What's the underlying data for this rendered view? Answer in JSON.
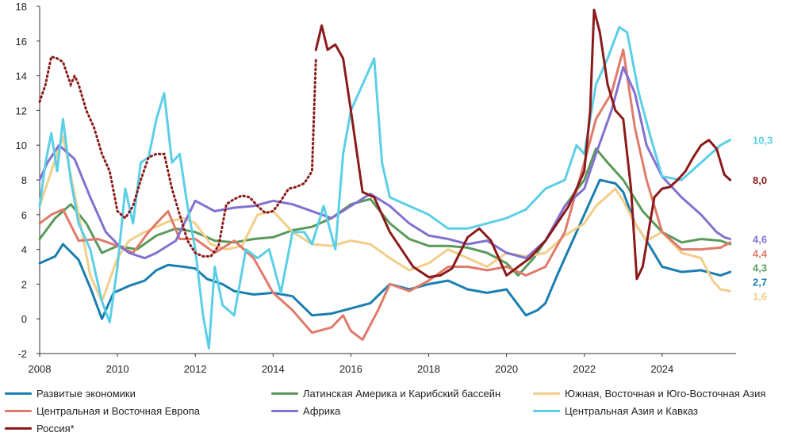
{
  "chart_data": {
    "type": "line",
    "title": "",
    "xlabel": "",
    "ylabel": "",
    "xlim": [
      2008,
      2025.9
    ],
    "ylim": [
      -2,
      18
    ],
    "x_ticks": [
      2008,
      2010,
      2012,
      2014,
      2016,
      2018,
      2020,
      2022,
      2024
    ],
    "x_tick_labels": [
      "2008",
      "2010",
      "2012",
      "2014",
      "2016",
      "2018",
      "2020",
      "2022",
      "2024"
    ],
    "y_ticks": [
      -2,
      0,
      2,
      4,
      6,
      8,
      10,
      12,
      14,
      16,
      18
    ],
    "y_tick_labels": [
      "-2",
      "0",
      "2",
      "4",
      "6",
      "8",
      "10",
      "12",
      "14",
      "16",
      "18"
    ],
    "series": [
      {
        "name": "Развитые экономики",
        "color": "#1a7fb0",
        "end_label": "2,7",
        "end_value": 2.7,
        "x": [
          2008.0,
          2008.4,
          2008.6,
          2009.0,
          2009.3,
          2009.6,
          2009.9,
          2010.3,
          2010.7,
          2011.0,
          2011.3,
          2011.7,
          2012.0,
          2012.3,
          2012.7,
          2013.0,
          2013.5,
          2014.0,
          2014.5,
          2015.0,
          2015.5,
          2016.0,
          2016.5,
          2017.0,
          2017.5,
          2018.0,
          2018.5,
          2019.0,
          2019.5,
          2020.0,
          2020.3,
          2020.5,
          2020.8,
          2021.0,
          2021.3,
          2021.7,
          2022.0,
          2022.4,
          2022.8,
          2023.0,
          2023.3,
          2023.6,
          2024.0,
          2024.5,
          2025.0,
          2025.5,
          2025.75
        ],
        "y": [
          3.2,
          3.6,
          4.3,
          3.4,
          1.8,
          0.0,
          1.5,
          1.9,
          2.2,
          2.8,
          3.1,
          3.0,
          2.9,
          2.3,
          2.0,
          1.6,
          1.4,
          1.5,
          1.3,
          0.2,
          0.3,
          0.6,
          0.9,
          2.0,
          1.7,
          2.0,
          2.2,
          1.7,
          1.5,
          1.7,
          0.8,
          0.2,
          0.5,
          0.9,
          2.5,
          4.5,
          6.0,
          8.0,
          7.8,
          7.3,
          5.5,
          4.5,
          3.0,
          2.7,
          2.8,
          2.5,
          2.7
        ]
      },
      {
        "name": "Латинская Америка и Карибский бассейн",
        "color": "#5a9a5a",
        "end_label": "4,3",
        "end_value": 4.3,
        "x": [
          2008.0,
          2008.4,
          2008.8,
          2009.2,
          2009.6,
          2010.0,
          2010.5,
          2011.0,
          2011.5,
          2012.0,
          2012.5,
          2013.0,
          2013.5,
          2014.0,
          2014.5,
          2015.0,
          2015.5,
          2016.0,
          2016.5,
          2017.0,
          2017.5,
          2018.0,
          2018.5,
          2019.0,
          2019.5,
          2020.0,
          2020.3,
          2020.7,
          2021.0,
          2021.5,
          2022.0,
          2022.3,
          2022.6,
          2023.0,
          2023.5,
          2024.0,
          2024.5,
          2025.0,
          2025.5,
          2025.75
        ],
        "y": [
          4.6,
          5.8,
          6.6,
          5.5,
          3.8,
          4.2,
          4.0,
          4.8,
          5.2,
          5.0,
          4.5,
          4.4,
          4.6,
          4.7,
          5.1,
          5.3,
          5.8,
          6.6,
          6.9,
          5.5,
          4.6,
          4.2,
          4.2,
          4.1,
          3.8,
          3.2,
          2.5,
          3.5,
          4.5,
          6.5,
          8.0,
          9.8,
          9.0,
          8.0,
          6.2,
          5.0,
          4.4,
          4.6,
          4.5,
          4.3
        ]
      },
      {
        "name": "Южная, Восточная и Юго-Восточная Азия",
        "color": "#f2ce8a",
        "end_label": "1,6",
        "end_value": 1.6,
        "x": [
          2008.0,
          2008.3,
          2008.6,
          2009.0,
          2009.3,
          2009.6,
          2010.0,
          2010.3,
          2010.7,
          2011.0,
          2011.3,
          2011.7,
          2012.0,
          2012.4,
          2012.8,
          2013.2,
          2013.6,
          2014.0,
          2014.5,
          2015.0,
          2015.5,
          2016.0,
          2016.5,
          2017.0,
          2017.5,
          2018.0,
          2018.5,
          2019.0,
          2019.5,
          2020.0,
          2020.5,
          2021.0,
          2021.5,
          2022.0,
          2022.3,
          2022.8,
          2023.0,
          2023.3,
          2023.6,
          2024.0,
          2024.5,
          2025.0,
          2025.3,
          2025.5,
          2025.75
        ],
        "y": [
          6.5,
          8.5,
          10.5,
          6.0,
          2.5,
          1.0,
          3.5,
          4.5,
          5.0,
          5.3,
          5.6,
          5.8,
          5.5,
          4.3,
          4.0,
          4.2,
          6.0,
          6.2,
          5.0,
          4.3,
          4.2,
          4.5,
          4.3,
          3.5,
          2.8,
          3.2,
          4.0,
          3.5,
          3.0,
          3.8,
          3.6,
          3.8,
          4.8,
          5.5,
          6.5,
          7.5,
          6.8,
          5.5,
          4.5,
          5.0,
          3.8,
          3.5,
          2.2,
          1.7,
          1.6
        ]
      },
      {
        "name": "Центральная и Восточная Европа",
        "color": "#e07a6a",
        "end_label": "4,4",
        "end_value": 4.4,
        "x": [
          2008.0,
          2008.3,
          2008.6,
          2009.0,
          2009.5,
          2010.0,
          2010.4,
          2010.8,
          2011.0,
          2011.3,
          2011.6,
          2012.0,
          2012.5,
          2013.0,
          2013.5,
          2014.0,
          2014.5,
          2015.0,
          2015.5,
          2015.8,
          2016.0,
          2016.3,
          2016.7,
          2017.0,
          2017.5,
          2018.0,
          2018.5,
          2019.0,
          2019.5,
          2020.0,
          2020.5,
          2021.0,
          2021.5,
          2022.0,
          2022.3,
          2022.7,
          2023.0,
          2023.3,
          2023.6,
          2024.0,
          2024.5,
          2025.0,
          2025.5,
          2025.75
        ],
        "y": [
          5.5,
          6.0,
          6.3,
          4.5,
          4.6,
          4.2,
          3.8,
          5.0,
          5.5,
          6.2,
          4.6,
          4.6,
          3.8,
          4.5,
          3.5,
          1.5,
          0.5,
          -0.8,
          -0.5,
          0.2,
          -0.7,
          -1.2,
          0.5,
          2.0,
          1.6,
          2.2,
          3.0,
          3.0,
          2.8,
          3.0,
          2.5,
          3.0,
          5.0,
          9.0,
          11.5,
          13.0,
          15.5,
          11.0,
          8.0,
          5.0,
          4.0,
          4.0,
          4.1,
          4.4
        ]
      },
      {
        "name": "Африка",
        "color": "#8470d0",
        "end_label": "4,6",
        "end_value": 4.6,
        "x": [
          2008.0,
          2008.2,
          2008.5,
          2008.9,
          2009.3,
          2009.7,
          2010.0,
          2010.3,
          2010.7,
          2011.0,
          2011.5,
          2012.0,
          2012.5,
          2013.0,
          2013.5,
          2014.0,
          2014.5,
          2015.0,
          2015.5,
          2016.0,
          2016.5,
          2017.0,
          2017.5,
          2018.0,
          2018.5,
          2019.0,
          2019.5,
          2020.0,
          2020.5,
          2021.0,
          2021.5,
          2022.0,
          2022.3,
          2022.7,
          2023.0,
          2023.3,
          2023.6,
          2024.0,
          2024.5,
          2025.0,
          2025.4,
          2025.6,
          2025.75
        ],
        "y": [
          8.0,
          9.0,
          10.0,
          9.2,
          7.0,
          5.0,
          4.3,
          3.8,
          3.5,
          3.8,
          4.5,
          6.8,
          6.2,
          6.4,
          6.5,
          6.8,
          6.6,
          6.2,
          5.8,
          6.5,
          7.2,
          6.5,
          5.5,
          4.8,
          4.6,
          4.3,
          4.5,
          3.8,
          3.5,
          4.5,
          6.5,
          7.5,
          9.5,
          12.0,
          14.5,
          13.0,
          10.0,
          8.2,
          7.0,
          6.0,
          5.0,
          4.7,
          4.6
        ]
      },
      {
        "name": "Центральная Азия и Кавказ",
        "color": "#5bcfe6",
        "end_label": "10,3",
        "end_value": 10.3,
        "x": [
          2008.0,
          2008.15,
          2008.3,
          2008.45,
          2008.6,
          2008.8,
          2009.0,
          2009.3,
          2009.6,
          2009.8,
          2010.0,
          2010.2,
          2010.4,
          2010.6,
          2010.8,
          2011.0,
          2011.2,
          2011.4,
          2011.6,
          2011.8,
          2012.0,
          2012.2,
          2012.35,
          2012.5,
          2012.7,
          2013.0,
          2013.3,
          2013.6,
          2013.9,
          2014.2,
          2014.5,
          2014.8,
          2015.0,
          2015.3,
          2015.6,
          2015.8,
          2016.0,
          2016.3,
          2016.6,
          2016.8,
          2017.0,
          2017.5,
          2018.0,
          2018.5,
          2019.0,
          2019.5,
          2020.0,
          2020.5,
          2021.0,
          2021.5,
          2021.8,
          2022.0,
          2022.3,
          2022.6,
          2022.9,
          2023.1,
          2023.4,
          2023.7,
          2024.0,
          2024.5,
          2025.0,
          2025.5,
          2025.75
        ],
        "y": [
          6.5,
          9.0,
          10.7,
          8.5,
          11.5,
          8.0,
          5.5,
          4.0,
          1.0,
          -0.2,
          3.0,
          7.5,
          5.5,
          9.0,
          9.3,
          11.5,
          13.0,
          9.0,
          9.5,
          6.5,
          4.0,
          0.2,
          -1.7,
          3.0,
          0.8,
          0.2,
          4.0,
          3.5,
          4.0,
          1.5,
          5.0,
          5.0,
          4.3,
          6.5,
          4.0,
          9.5,
          12.0,
          13.5,
          15.0,
          9.0,
          7.0,
          6.5,
          6.0,
          5.2,
          5.2,
          5.5,
          5.8,
          6.3,
          7.5,
          8.0,
          10.0,
          9.5,
          13.5,
          15.0,
          16.8,
          16.5,
          13.0,
          10.5,
          8.2,
          8.0,
          9.0,
          10.0,
          10.3
        ]
      },
      {
        "name": "Россия*",
        "color": "#8b1a1a",
        "end_label": "8,0",
        "end_value": 8.0,
        "x_dotted": [
          2008.0,
          2008.15,
          2008.3,
          2008.45,
          2008.6,
          2008.8,
          2008.9,
          2009.0,
          2009.2,
          2009.4,
          2009.6,
          2009.8,
          2010.0,
          2010.2,
          2010.4,
          2010.6,
          2010.8,
          2011.0,
          2011.2,
          2011.4,
          2011.6,
          2011.8,
          2012.0,
          2012.2,
          2012.4,
          2012.6,
          2012.8,
          2013.0,
          2013.2,
          2013.4,
          2013.6,
          2013.8,
          2014.0,
          2014.2,
          2014.4,
          2014.6,
          2014.8,
          2015.0,
          2015.1
        ],
        "y_dotted": [
          12.5,
          13.5,
          15.1,
          15.0,
          14.8,
          13.5,
          14.0,
          13.5,
          12.0,
          11.0,
          9.5,
          8.5,
          6.2,
          5.8,
          6.5,
          8.0,
          9.3,
          9.5,
          9.5,
          7.5,
          6.0,
          4.5,
          3.8,
          3.6,
          3.6,
          4.2,
          6.6,
          6.9,
          7.1,
          7.0,
          6.5,
          6.1,
          6.2,
          6.8,
          7.5,
          7.6,
          7.8,
          8.5,
          15.0
        ],
        "x": [
          2015.1,
          2015.25,
          2015.4,
          2015.6,
          2015.8,
          2016.0,
          2016.3,
          2016.6,
          2017.0,
          2017.3,
          2017.6,
          2018.0,
          2018.3,
          2018.6,
          2019.0,
          2019.3,
          2019.6,
          2020.0,
          2020.3,
          2020.6,
          2021.0,
          2021.3,
          2021.6,
          2022.0,
          2022.15,
          2022.25,
          2022.4,
          2022.6,
          2022.8,
          2023.0,
          2023.2,
          2023.35,
          2023.5,
          2023.65,
          2023.8,
          2024.0,
          2024.2,
          2024.4,
          2024.6,
          2024.8,
          2025.0,
          2025.2,
          2025.4,
          2025.6,
          2025.75
        ],
        "y": [
          15.5,
          16.9,
          15.5,
          15.8,
          15.0,
          12.0,
          7.3,
          7.0,
          5.0,
          4.0,
          3.0,
          2.4,
          2.5,
          2.9,
          4.7,
          5.2,
          4.5,
          2.5,
          3.0,
          3.5,
          4.5,
          5.5,
          6.5,
          8.5,
          12.0,
          17.8,
          16.5,
          13.5,
          12.0,
          11.5,
          7.5,
          2.3,
          3.0,
          5.0,
          7.0,
          7.5,
          7.6,
          8.0,
          8.5,
          9.3,
          10.0,
          10.3,
          9.8,
          8.3,
          8.0
        ]
      }
    ],
    "legend": {
      "position": "bottom",
      "items": [
        "Развитые экономики",
        "Латинская Америка и Карибский бассейн",
        "Южная, Восточная и Юго-Восточная Азия",
        "Центральная и Восточная Европа",
        "Африка",
        "Центральная Азия и Кавказ",
        "Россия*"
      ]
    }
  }
}
